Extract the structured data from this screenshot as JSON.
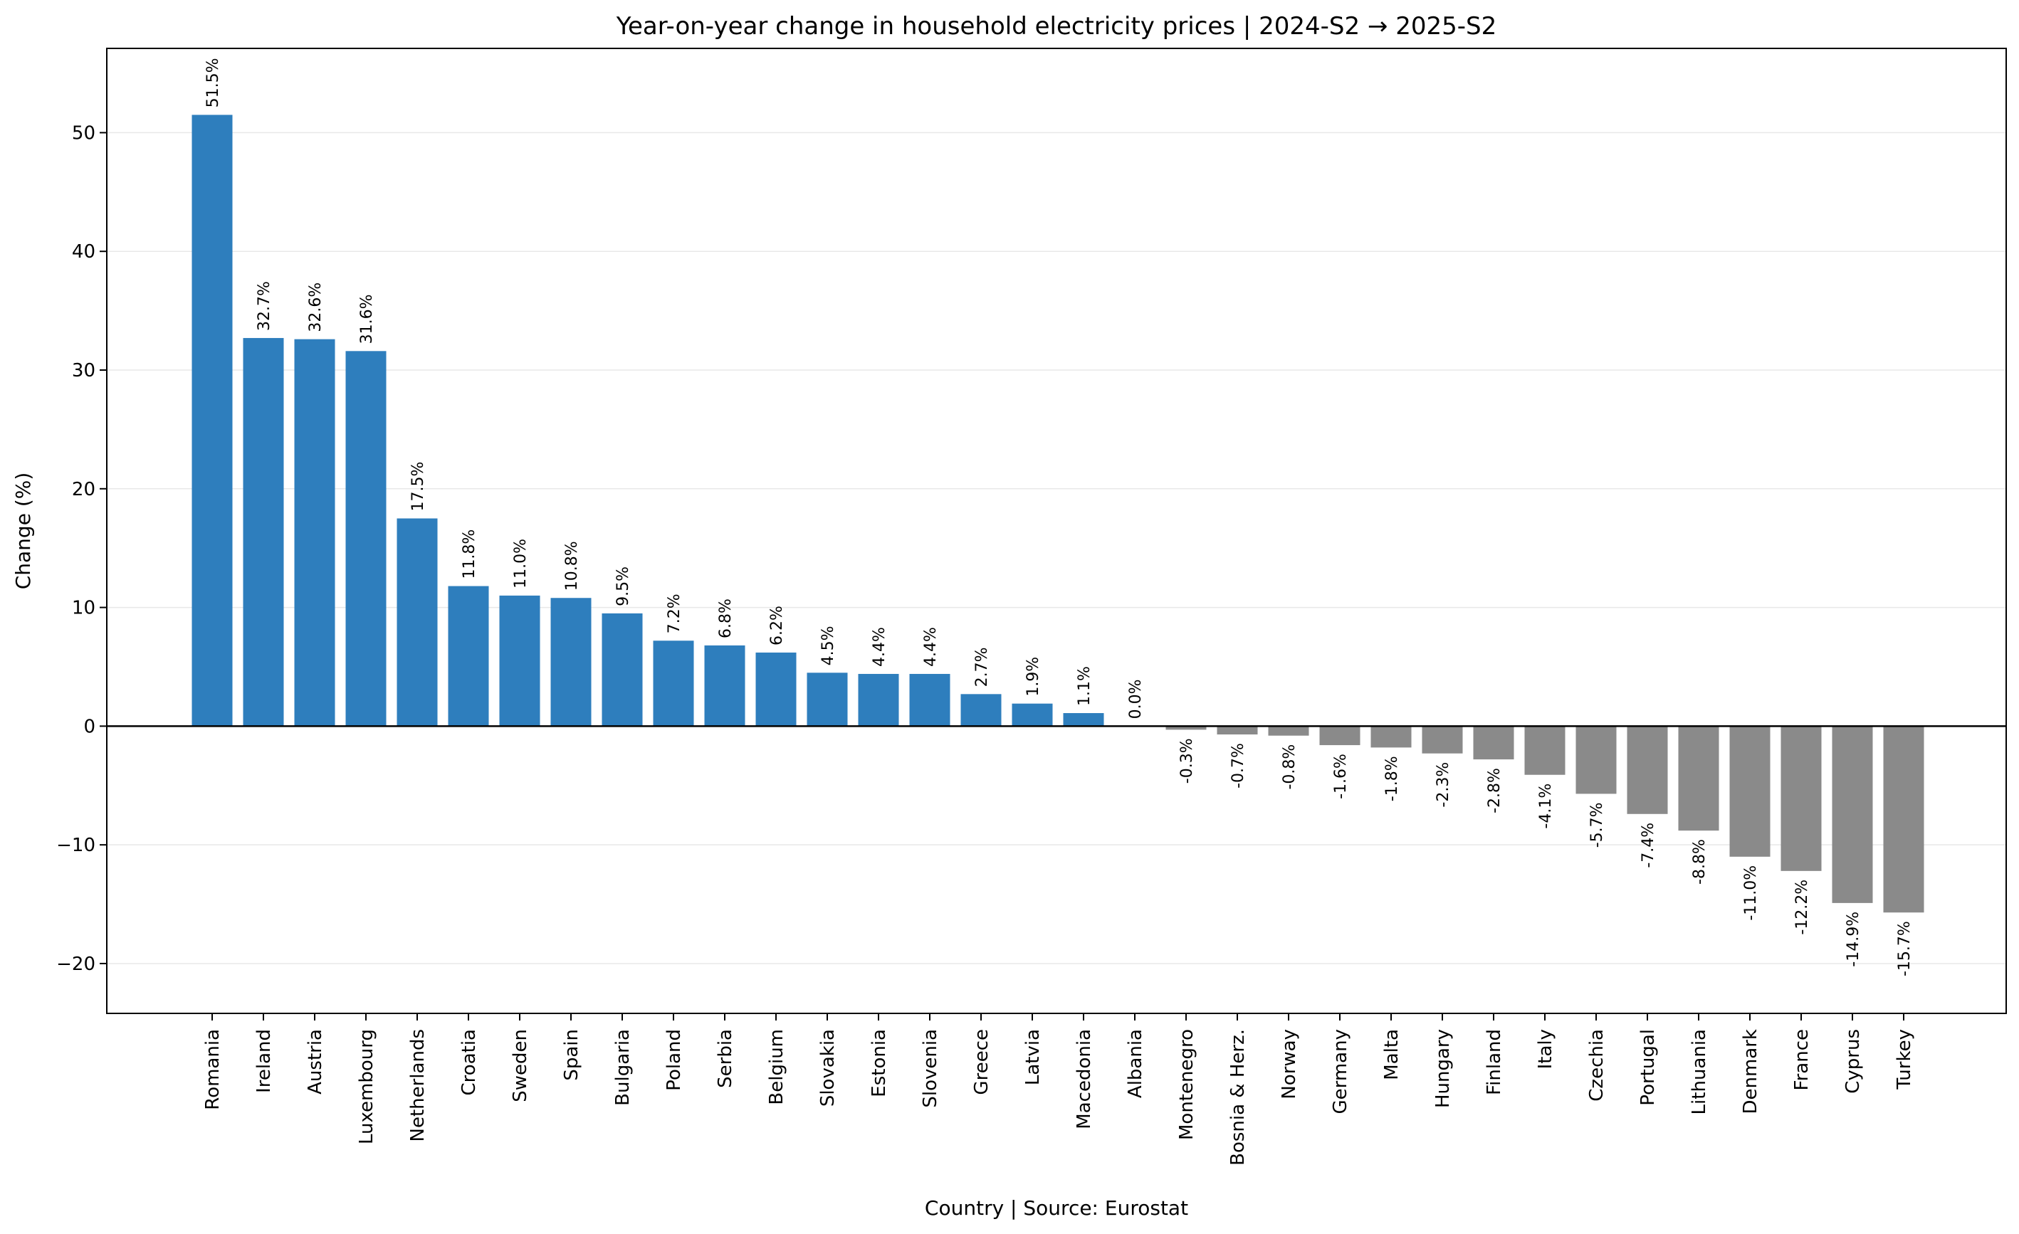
{
  "chart_data": {
    "type": "bar",
    "title": "Year-on-year change in household electricity prices | 2024-S2 → 2025-S2",
    "xlabel": "Country | Source: Eurostat",
    "ylabel": "Change (%)",
    "ylim": [
      -24.2,
      57.1
    ],
    "yticks": [
      -20,
      -10,
      0,
      10,
      20,
      30,
      40,
      50
    ],
    "ytick_labels": [
      "−20",
      "−10",
      "0",
      "10",
      "20",
      "30",
      "40",
      "50"
    ],
    "grid": true,
    "positive_color": "#2e7ebd",
    "negative_color": "#8a8a8a",
    "categories": [
      "Romania",
      "Ireland",
      "Austria",
      "Luxembourg",
      "Netherlands",
      "Croatia",
      "Sweden",
      "Spain",
      "Bulgaria",
      "Poland",
      "Serbia",
      "Belgium",
      "Slovakia",
      "Estonia",
      "Slovenia",
      "Greece",
      "Latvia",
      "Macedonia",
      "Albania",
      "Montenegro",
      "Bosnia & Herz.",
      "Norway",
      "Germany",
      "Malta",
      "Hungary",
      "Finland",
      "Italy",
      "Czechia",
      "Portugal",
      "Lithuania",
      "Denmark",
      "France",
      "Cyprus",
      "Turkey"
    ],
    "values": [
      51.5,
      32.7,
      32.6,
      31.6,
      17.5,
      11.8,
      11.0,
      10.8,
      9.5,
      7.2,
      6.8,
      6.2,
      4.5,
      4.4,
      4.4,
      2.7,
      1.9,
      1.1,
      0.0,
      -0.3,
      -0.7,
      -0.8,
      -1.6,
      -1.8,
      -2.3,
      -2.8,
      -4.1,
      -5.7,
      -7.4,
      -8.8,
      -11.0,
      -12.2,
      -14.9,
      -15.7
    ],
    "value_labels": [
      "51.5%",
      "32.7%",
      "32.6%",
      "31.6%",
      "17.5%",
      "11.8%",
      "11.0%",
      "10.8%",
      "9.5%",
      "7.2%",
      "6.8%",
      "6.2%",
      "4.5%",
      "4.4%",
      "4.4%",
      "2.7%",
      "1.9%",
      "1.1%",
      "0.0%",
      "-0.3%",
      "-0.7%",
      "-0.8%",
      "-1.6%",
      "-1.8%",
      "-2.3%",
      "-2.8%",
      "-4.1%",
      "-5.7%",
      "-7.4%",
      "-8.8%",
      "-11.0%",
      "-12.2%",
      "-14.9%",
      "-15.7%"
    ]
  }
}
